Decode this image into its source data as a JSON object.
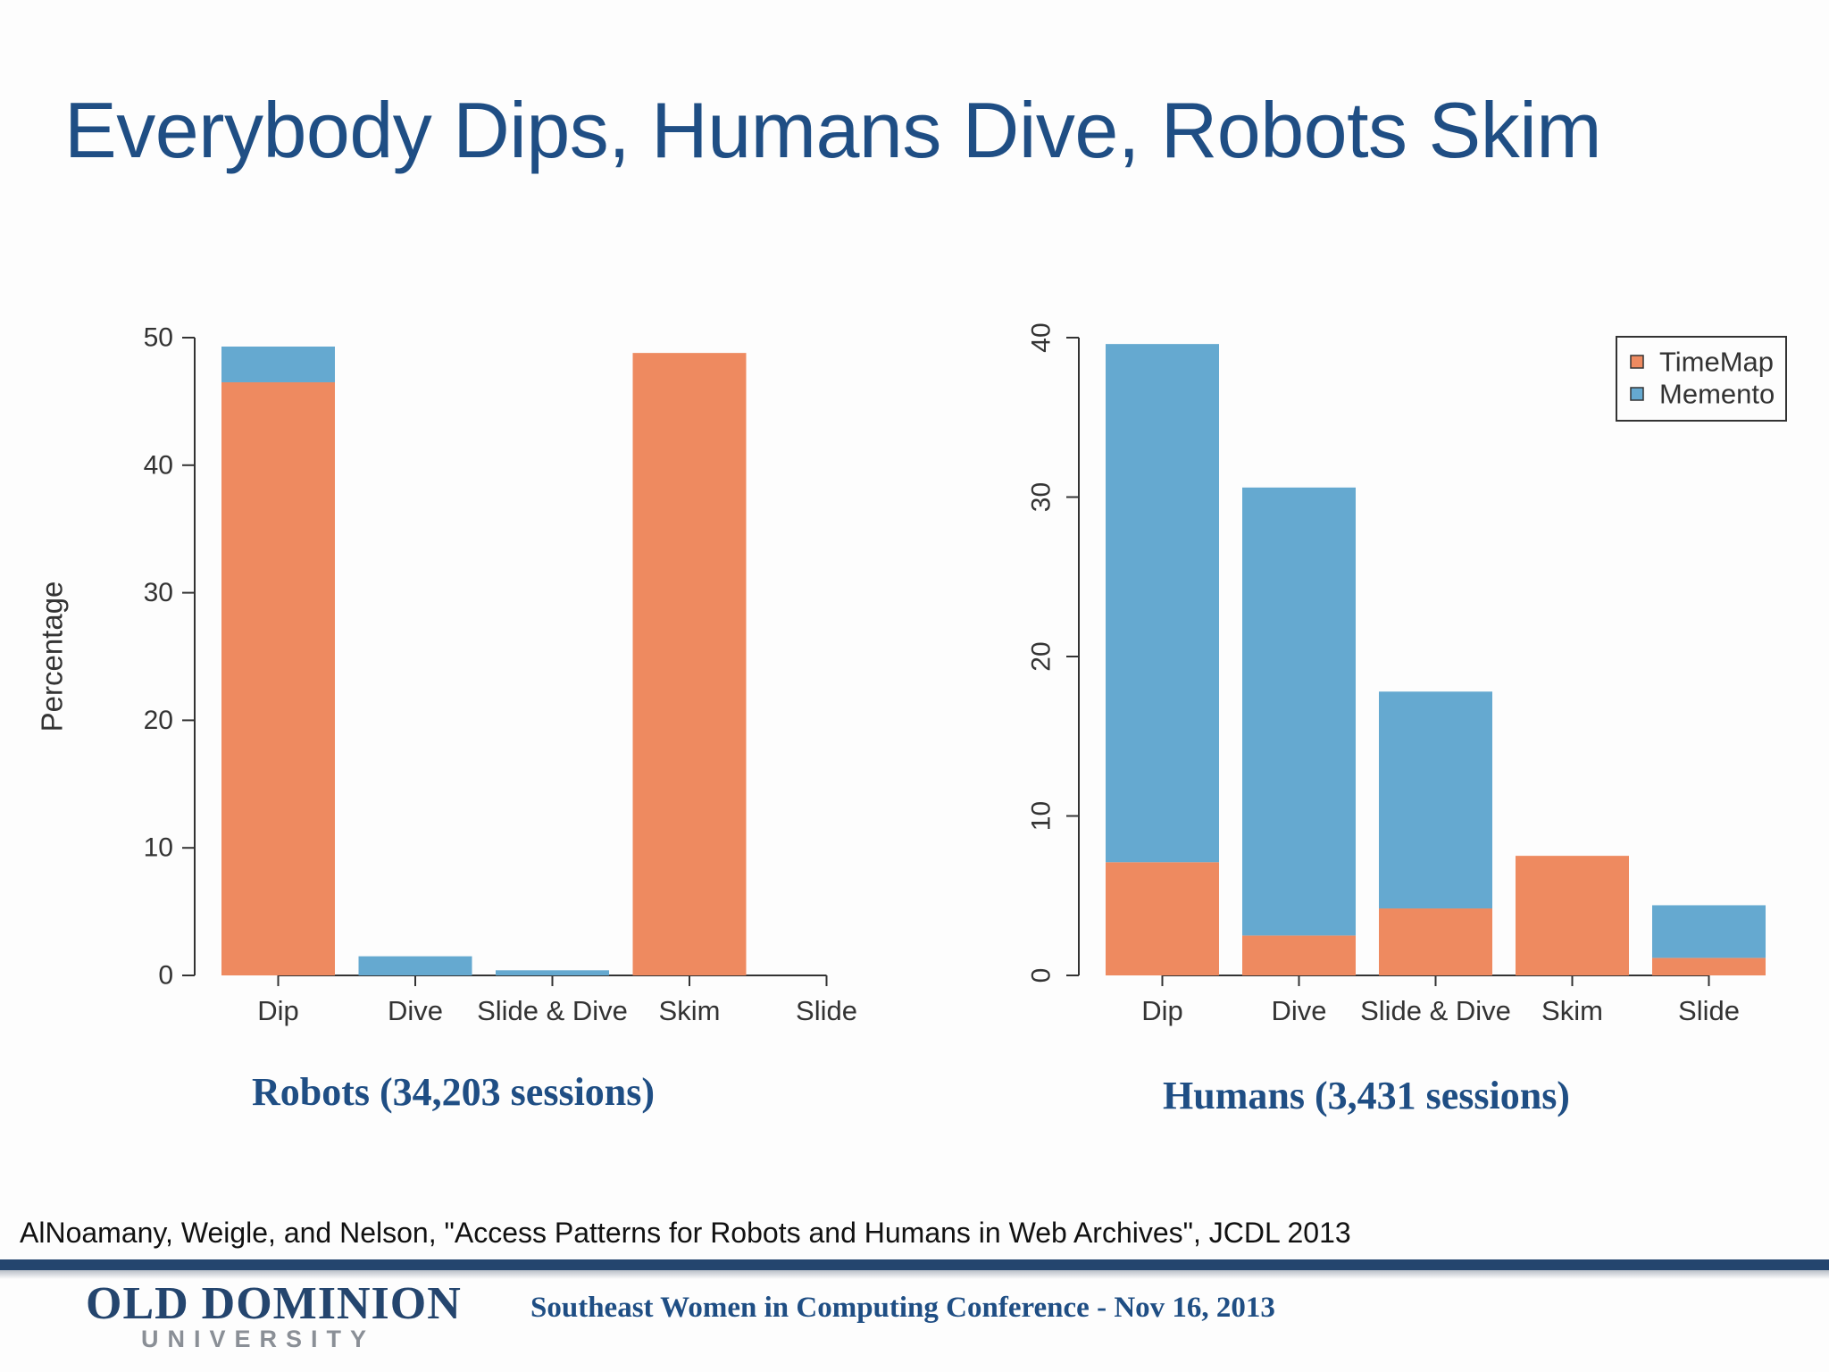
{
  "slide": {
    "title": "Everybody Dips, Humans Dive, Robots Skim",
    "citation": "AlNoamany, Weigle, and Nelson, \"Access Patterns for Robots and Humans in Web Archives\", JCDL 2013",
    "logo_main": "OLD DOMINION",
    "logo_sub": "UNIVERSITY",
    "footer": "Southeast Women in Computing Conference - Nov 16, 2013"
  },
  "colors": {
    "timemap": "#ee8a60",
    "memento": "#65a9d0",
    "title": "#1f4e84",
    "rule": "#24456e"
  },
  "chart_data": [
    {
      "type": "bar",
      "stacked": true,
      "caption": "Robots (34,203 sessions)",
      "categories": [
        "Dip",
        "Dive",
        "Slide & Dive",
        "Skim",
        "Slide"
      ],
      "ylabel": "Percentage",
      "ylim": [
        0,
        50
      ],
      "yticks": [
        0,
        10,
        20,
        30,
        40,
        50
      ],
      "series": [
        {
          "name": "TimeMap",
          "values": [
            46.5,
            0,
            0,
            48.8,
            0
          ]
        },
        {
          "name": "Memento",
          "values": [
            2.8,
            1.5,
            0.4,
            0,
            0
          ]
        }
      ],
      "legend": null
    },
    {
      "type": "bar",
      "stacked": true,
      "caption": "Humans (3,431 sessions)",
      "categories": [
        "Dip",
        "Dive",
        "Slide & Dive",
        "Skim",
        "Slide"
      ],
      "ylabel": "",
      "ylim": [
        0,
        40
      ],
      "yticks": [
        0,
        10,
        20,
        30,
        40
      ],
      "series": [
        {
          "name": "TimeMap",
          "values": [
            7.1,
            2.5,
            4.2,
            7.5,
            1.1
          ]
        },
        {
          "name": "Memento",
          "values": [
            32.5,
            28.1,
            13.6,
            0,
            3.3
          ]
        }
      ],
      "legend": {
        "placement": "top-right",
        "entries": [
          "TimeMap",
          "Memento"
        ]
      }
    }
  ]
}
